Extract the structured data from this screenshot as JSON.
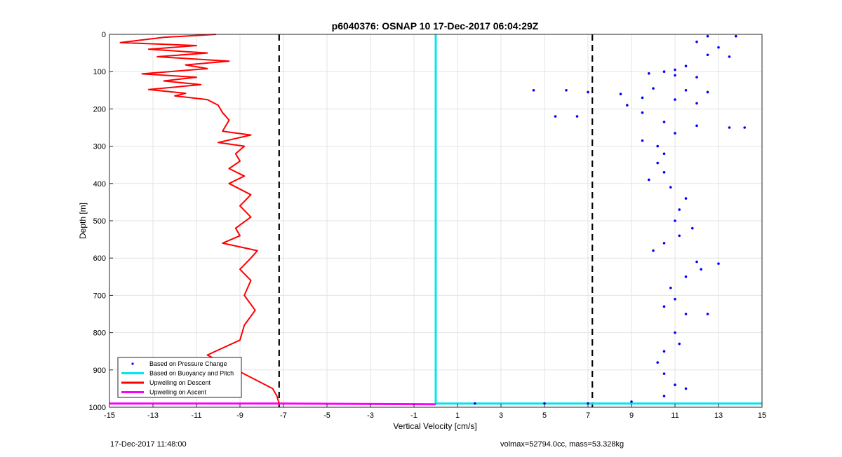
{
  "chart_data": {
    "type": "scatter",
    "title": "p6040376: OSNAP 10 17-Dec-2017 06:04:29Z",
    "xlabel": "Vertical Velocity [cm/s]",
    "ylabel": "Depth [m]",
    "xlim": [
      -15,
      15
    ],
    "ylim": [
      1000,
      0
    ],
    "y_reversed": true,
    "grid": true,
    "xticks": [
      -15,
      -13,
      -11,
      -9,
      -7,
      -5,
      -3,
      -1,
      1,
      3,
      5,
      7,
      9,
      11,
      13,
      15
    ],
    "xtick_labels": [
      "-15",
      "-13",
      "-11",
      "-9",
      "-7",
      "-5",
      "-3",
      "-1",
      "1",
      "3",
      "5",
      "7",
      "9",
      "11",
      "13",
      "15"
    ],
    "yticks": [
      0,
      100,
      200,
      300,
      400,
      500,
      600,
      700,
      800,
      900,
      1000
    ],
    "ytick_labels": [
      "0",
      "100",
      "200",
      "300",
      "400",
      "500",
      "600",
      "700",
      "800",
      "900",
      "1000"
    ],
    "legend_position": "bottom-left",
    "legend": [
      {
        "label": "Based on Pressure Change",
        "color": "#0000ff",
        "style": "dot"
      },
      {
        "label": "Based on Buoyancy and Pitch",
        "color": "#00e5ee",
        "style": "line"
      },
      {
        "label": "Upwelling on Descent",
        "color": "#ff0000",
        "style": "line"
      },
      {
        "label": "Upwelling on Ascent",
        "color": "#ff00ff",
        "style": "line"
      }
    ],
    "reference_lines": [
      {
        "x": -7.2,
        "color": "#000000",
        "style": "dashed"
      },
      {
        "x": 7.2,
        "color": "#000000",
        "style": "dashed"
      }
    ],
    "series": [
      {
        "name": "Based on Buoyancy and Pitch",
        "color": "#00e5ee",
        "type": "line",
        "points": [
          [
            0,
            0
          ],
          [
            0,
            990
          ],
          [
            15,
            990
          ]
        ]
      },
      {
        "name": "Upwelling on Ascent",
        "color": "#ff00ff",
        "type": "line",
        "points": [
          [
            -15,
            990
          ],
          [
            -7.2,
            990
          ],
          [
            0,
            992
          ]
        ]
      },
      {
        "name": "Upwelling on Descent",
        "color": "#ff0000",
        "type": "line",
        "points": [
          [
            -10.1,
            0
          ],
          [
            -12.5,
            8
          ],
          [
            -14.5,
            22
          ],
          [
            -11.0,
            30
          ],
          [
            -13.2,
            40
          ],
          [
            -10.5,
            50
          ],
          [
            -12.8,
            60
          ],
          [
            -9.5,
            72
          ],
          [
            -11.5,
            82
          ],
          [
            -10.5,
            92
          ],
          [
            -13.5,
            106
          ],
          [
            -11.0,
            115
          ],
          [
            -12.5,
            125
          ],
          [
            -10.8,
            135
          ],
          [
            -13.2,
            148
          ],
          [
            -11.5,
            158
          ],
          [
            -12.0,
            165
          ],
          [
            -10.5,
            175
          ],
          [
            -10.0,
            190
          ],
          [
            -9.8,
            210
          ],
          [
            -9.5,
            230
          ],
          [
            -9.8,
            260
          ],
          [
            -8.5,
            270
          ],
          [
            -10.0,
            290
          ],
          [
            -8.8,
            300
          ],
          [
            -9.2,
            320
          ],
          [
            -9.0,
            340
          ],
          [
            -9.5,
            360
          ],
          [
            -8.8,
            380
          ],
          [
            -9.5,
            400
          ],
          [
            -8.5,
            430
          ],
          [
            -9.0,
            460
          ],
          [
            -8.5,
            490
          ],
          [
            -9.2,
            520
          ],
          [
            -9.0,
            540
          ],
          [
            -9.8,
            560
          ],
          [
            -8.2,
            580
          ],
          [
            -8.5,
            600
          ],
          [
            -9.0,
            630
          ],
          [
            -8.5,
            660
          ],
          [
            -8.8,
            700
          ],
          [
            -8.3,
            740
          ],
          [
            -8.8,
            780
          ],
          [
            -9.0,
            820
          ],
          [
            -10.5,
            860
          ],
          [
            -9.5,
            890
          ],
          [
            -8.5,
            920
          ],
          [
            -7.5,
            950
          ],
          [
            -7.3,
            970
          ],
          [
            -7.2,
            990
          ]
        ]
      },
      {
        "name": "Based on Pressure Change",
        "color": "#0000ff",
        "type": "scatter",
        "points": [
          [
            12.5,
            5
          ],
          [
            13.8,
            5
          ],
          [
            12.0,
            20
          ],
          [
            13.0,
            35
          ],
          [
            12.5,
            55
          ],
          [
            13.5,
            60
          ],
          [
            11.5,
            85
          ],
          [
            11.0,
            95
          ],
          [
            10.5,
            100
          ],
          [
            9.8,
            105
          ],
          [
            11.0,
            110
          ],
          [
            12.0,
            115
          ],
          [
            4.5,
            150
          ],
          [
            6.0,
            150
          ],
          [
            7.0,
            155
          ],
          [
            8.5,
            160
          ],
          [
            10.0,
            145
          ],
          [
            11.5,
            150
          ],
          [
            12.5,
            155
          ],
          [
            9.5,
            170
          ],
          [
            11.0,
            175
          ],
          [
            12.0,
            185
          ],
          [
            8.8,
            190
          ],
          [
            9.5,
            210
          ],
          [
            5.5,
            220
          ],
          [
            6.5,
            220
          ],
          [
            10.5,
            235
          ],
          [
            12.0,
            245
          ],
          [
            13.5,
            250
          ],
          [
            14.2,
            250
          ],
          [
            11.0,
            265
          ],
          [
            9.5,
            285
          ],
          [
            10.2,
            300
          ],
          [
            10.5,
            320
          ],
          [
            10.2,
            345
          ],
          [
            10.5,
            370
          ],
          [
            9.8,
            390
          ],
          [
            10.8,
            410
          ],
          [
            11.5,
            440
          ],
          [
            11.2,
            470
          ],
          [
            11.0,
            500
          ],
          [
            11.8,
            520
          ],
          [
            11.2,
            540
          ],
          [
            10.5,
            560
          ],
          [
            10.0,
            580
          ],
          [
            12.0,
            610
          ],
          [
            13.0,
            615
          ],
          [
            12.2,
            630
          ],
          [
            11.5,
            650
          ],
          [
            10.8,
            680
          ],
          [
            11.0,
            710
          ],
          [
            10.5,
            730
          ],
          [
            11.5,
            750
          ],
          [
            12.5,
            750
          ],
          [
            11.0,
            800
          ],
          [
            11.2,
            830
          ],
          [
            10.5,
            850
          ],
          [
            10.2,
            880
          ],
          [
            10.5,
            910
          ],
          [
            11.0,
            940
          ],
          [
            11.5,
            950
          ],
          [
            10.5,
            970
          ],
          [
            9.0,
            985
          ],
          [
            7.0,
            990
          ],
          [
            5.0,
            990
          ],
          [
            1.8,
            990
          ]
        ]
      }
    ]
  },
  "footer": {
    "timestamp": "17-Dec-2017 11:48:00",
    "stats": "volmax=52794.0cc, mass=53.328kg"
  }
}
